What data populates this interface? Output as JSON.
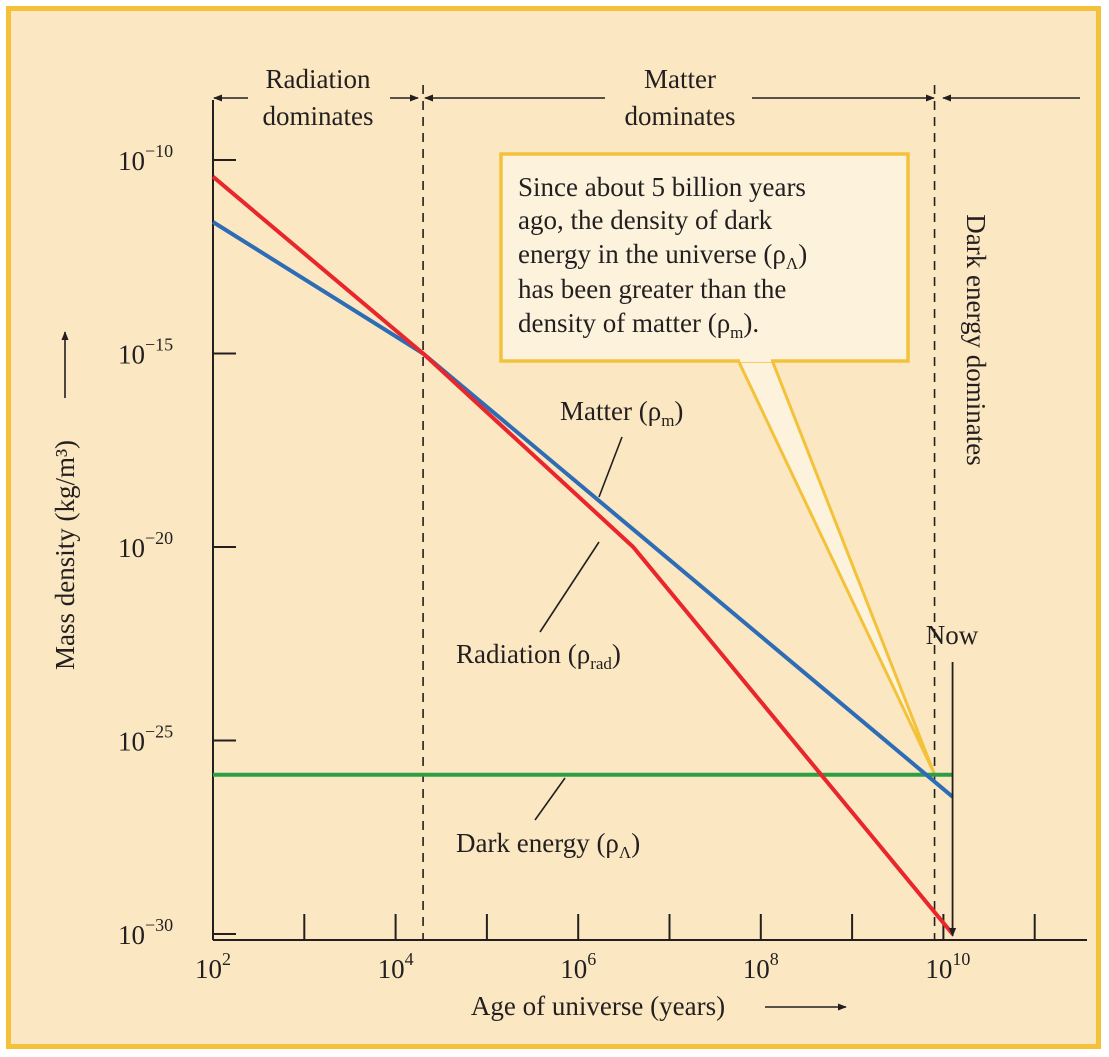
{
  "chart_data": {
    "type": "line",
    "xlabel": "Age of universe (years)",
    "ylabel": "Mass density (kg/m³)",
    "x_scale": "log",
    "y_scale": "log",
    "xlim": [
      100,
      100000000000
    ],
    "ylim": [
      1e-30,
      1e-10
    ],
    "x_ticks": [
      {
        "value": 100,
        "base": "10",
        "exp": "2"
      },
      {
        "value": 10000,
        "base": "10",
        "exp": "4"
      },
      {
        "value": 1000000,
        "base": "10",
        "exp": "6"
      },
      {
        "value": 100000000,
        "base": "10",
        "exp": "8"
      },
      {
        "value": 10000000000,
        "base": "10",
        "exp": "10"
      }
    ],
    "y_ticks": [
      {
        "value": 1e-10,
        "base": "10",
        "exp": "−10"
      },
      {
        "value": 1e-15,
        "base": "10",
        "exp": "−15"
      },
      {
        "value": 1e-20,
        "base": "10",
        "exp": "−20"
      },
      {
        "value": 1e-25,
        "base": "10",
        "exp": "−25"
      },
      {
        "value": 1e-30,
        "base": "10",
        "exp": "−30"
      }
    ],
    "series": [
      {
        "name": "Radiation (ρrad)",
        "color": "#e8262c",
        "points": [
          [
            100,
            3.7e-11
          ],
          [
            20000,
            1e-15
          ],
          [
            4000000,
            1e-20
          ],
          [
            12600000000,
            1e-30
          ]
        ]
      },
      {
        "name": "Matter (ρm)",
        "color": "#2e6db5",
        "points": [
          [
            100,
            2.5e-12
          ],
          [
            20000,
            1e-15
          ],
          [
            12600000000,
            3.5e-27
          ]
        ]
      },
      {
        "name": "Dark energy (ρΛ)",
        "color": "#2e9e45",
        "points": [
          [
            100,
            1.3e-26
          ],
          [
            12600000000,
            1.3e-26
          ]
        ]
      }
    ],
    "series_labels": [
      {
        "name": "Matter (ρ",
        "sub": "m",
        "close": ")"
      },
      {
        "name": "Radiation (ρ",
        "sub": "rad",
        "close": ")"
      },
      {
        "name": "Dark energy (ρ",
        "sub": "Λ",
        "close": ")"
      }
    ],
    "eras": [
      {
        "lines": [
          "Radiation",
          "dominates"
        ]
      },
      {
        "lines": [
          "Matter",
          "dominates"
        ]
      },
      {
        "lines": [
          "Dark energy dominates"
        ]
      }
    ],
    "era_boundaries": [
      20000,
      8000000000
    ],
    "now_label": "Now",
    "now_value": 12600000000,
    "callout": {
      "lines": [
        "Since about 5 billion years",
        "ago, the density of dark",
        "energy in the universe (ρ",
        "has been greater than the",
        "density of matter (ρ"
      ],
      "sub_lambda": "Λ",
      "sub_m": "m",
      "close_lambda": ")",
      "close_m": ")."
    },
    "colors": {
      "background": "#fbe8c2",
      "border": "#f3c23a",
      "callout_bg": "#fdf2dc",
      "radiation": "#e8262c",
      "matter": "#2e6db5",
      "dark_energy": "#2e9e45"
    }
  }
}
